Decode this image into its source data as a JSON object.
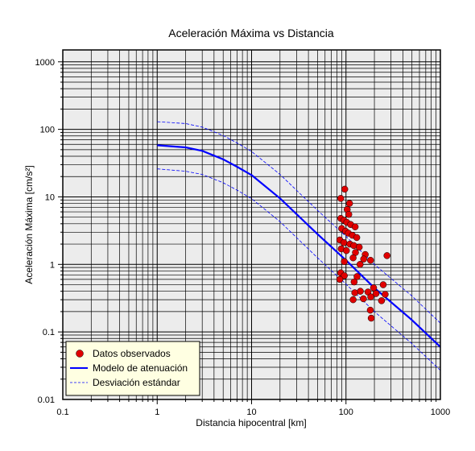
{
  "chart_data": {
    "type": "scatter",
    "title": "Aceleración Máxima vs Distancia",
    "xlabel": "Distancia hipocentral [km]",
    "ylabel": "Aceleración Máxima [cm/s²]",
    "xscale": "log",
    "yscale": "log",
    "xlim": [
      0.1,
      1000
    ],
    "ylim": [
      0.01,
      1500
    ],
    "x_ticks": [
      {
        "value": 0.1,
        "label": "0.1"
      },
      {
        "value": 1,
        "label": "1"
      },
      {
        "value": 10,
        "label": "10"
      },
      {
        "value": 100,
        "label": "100"
      },
      {
        "value": 1000,
        "label": "1000"
      }
    ],
    "y_ticks": [
      {
        "value": 0.01,
        "label": "0.01"
      },
      {
        "value": 0.1,
        "label": "0.1"
      },
      {
        "value": 1,
        "label": "1"
      },
      {
        "value": 10,
        "label": "10"
      },
      {
        "value": 100,
        "label": "100"
      },
      {
        "value": 1000,
        "label": "1000"
      }
    ],
    "grid": true,
    "legend_position": "bottom-left",
    "series": [
      {
        "name": "Datos observados",
        "kind": "scatter",
        "color": "#e00000",
        "points": [
          [
            88,
            9.5
          ],
          [
            97,
            13
          ],
          [
            103,
            6.5
          ],
          [
            109,
            8
          ],
          [
            107,
            5.5
          ],
          [
            88,
            4.8
          ],
          [
            95,
            4.5
          ],
          [
            102,
            4.2
          ],
          [
            112,
            3.9
          ],
          [
            125,
            3.6
          ],
          [
            90,
            3.4
          ],
          [
            99,
            3.1
          ],
          [
            106,
            2.9
          ],
          [
            117,
            2.7
          ],
          [
            130,
            2.5
          ],
          [
            86,
            2.3
          ],
          [
            95,
            2.1
          ],
          [
            110,
            2.0
          ],
          [
            121,
            1.9
          ],
          [
            138,
            1.8
          ],
          [
            89,
            1.7
          ],
          [
            101,
            1.6
          ],
          [
            126,
            1.5
          ],
          [
            160,
            1.4
          ],
          [
            272,
            1.35
          ],
          [
            119,
            1.25
          ],
          [
            154,
            1.2
          ],
          [
            182,
            1.15
          ],
          [
            96,
            1.1
          ],
          [
            141,
            1.0
          ],
          [
            88,
            0.75
          ],
          [
            96,
            0.68
          ],
          [
            131,
            0.66
          ],
          [
            86,
            0.6
          ],
          [
            122,
            0.55
          ],
          [
            248,
            0.5
          ],
          [
            196,
            0.45
          ],
          [
            142,
            0.4
          ],
          [
            171,
            0.39
          ],
          [
            124,
            0.38
          ],
          [
            208,
            0.37
          ],
          [
            260,
            0.36
          ],
          [
            183,
            0.33
          ],
          [
            153,
            0.31
          ],
          [
            119,
            0.3
          ],
          [
            238,
            0.29
          ],
          [
            181,
            0.21
          ],
          [
            185,
            0.16
          ]
        ]
      },
      {
        "name": "Modelo de atenuación",
        "kind": "line",
        "color": "#0000ff",
        "points": [
          [
            1,
            58
          ],
          [
            2,
            54
          ],
          [
            3,
            48
          ],
          [
            5,
            36
          ],
          [
            7,
            28
          ],
          [
            10,
            21
          ],
          [
            20,
            9.5
          ],
          [
            50,
            2.8
          ],
          [
            100,
            1.15
          ],
          [
            200,
            0.45
          ],
          [
            500,
            0.15
          ],
          [
            1000,
            0.06
          ]
        ]
      },
      {
        "name": "Desviación estándar",
        "kind": "line",
        "color": "#0000ff",
        "dashed": true,
        "points": [
          [
            1,
            130
          ],
          [
            2,
            122
          ],
          [
            3,
            108
          ],
          [
            5,
            81
          ],
          [
            7,
            63
          ],
          [
            10,
            47
          ],
          [
            20,
            21.5
          ],
          [
            50,
            6.3
          ],
          [
            100,
            2.6
          ],
          [
            200,
            1.0
          ],
          [
            500,
            0.34
          ],
          [
            1000,
            0.135
          ]
        ]
      },
      {
        "kind": "line",
        "color": "#0000ff",
        "dashed": true,
        "points": [
          [
            1,
            26
          ],
          [
            2,
            24
          ],
          [
            3,
            21.5
          ],
          [
            5,
            16.2
          ],
          [
            7,
            12.6
          ],
          [
            10,
            9.4
          ],
          [
            20,
            4.3
          ],
          [
            50,
            1.25
          ],
          [
            100,
            0.51
          ],
          [
            200,
            0.2
          ],
          [
            500,
            0.067
          ],
          [
            1000,
            0.027
          ]
        ]
      }
    ]
  }
}
